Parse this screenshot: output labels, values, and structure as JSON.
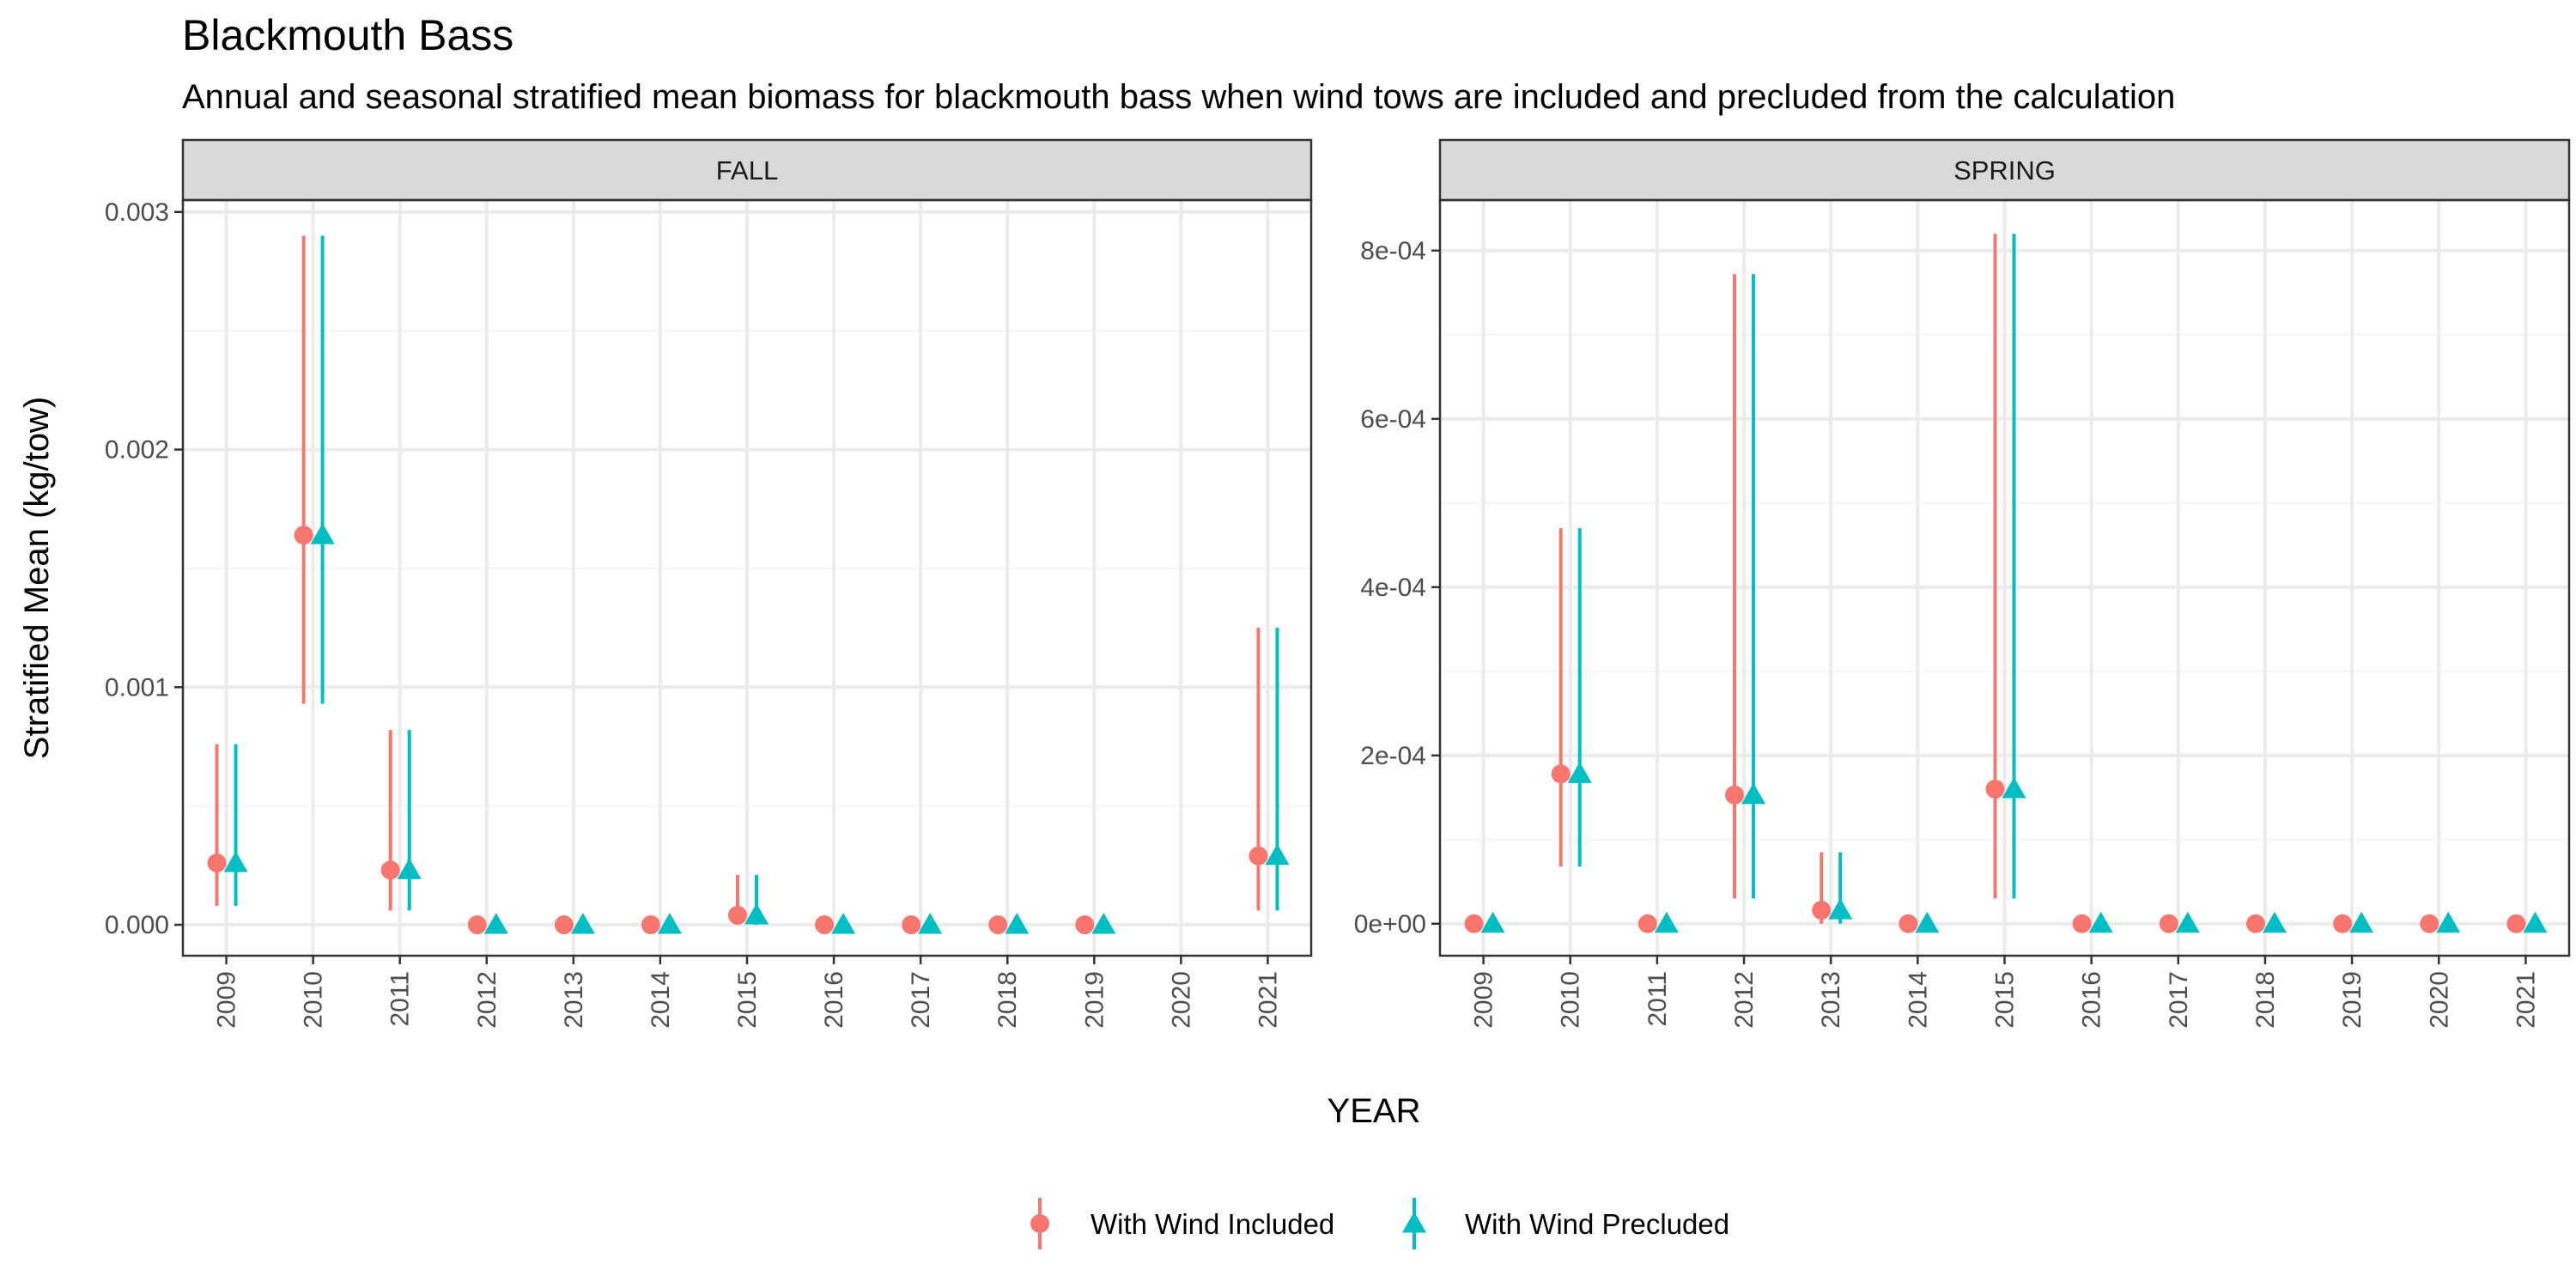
{
  "title": "Blackmouth Bass",
  "subtitle": "Annual and seasonal stratified mean biomass for blackmouth bass when wind tows are included and precluded from the calculation",
  "colors": {
    "with_wind_included": "#F8766D",
    "with_wind_precluded": "#00BFC4",
    "strip_bg": "#D9D9D9",
    "grid_major": "#EBEBEB",
    "grid_minor": "#F5F5F5",
    "panel_border": "#333333"
  },
  "chart_data": [
    {
      "type": "scatter",
      "panel": "FALL",
      "xlabel": "YEAR",
      "ylabel": "Stratified Mean (kg/tow)",
      "x": [
        "2009",
        "2010",
        "2011",
        "2012",
        "2013",
        "2014",
        "2015",
        "2016",
        "2017",
        "2018",
        "2019",
        "2020",
        "2021"
      ],
      "ylim": [
        -0.00013,
        0.00305
      ],
      "y_ticks": [
        0,
        0.001,
        0.002,
        0.003
      ],
      "y_tick_labels": [
        "0.000",
        "0.001",
        "0.002",
        "0.003"
      ],
      "grid": true,
      "series": [
        {
          "name": "With Wind Included",
          "marker": "circle",
          "values": [
            0.00026,
            0.00164,
            0.00023,
            0.0,
            0.0,
            0.0,
            4e-05,
            0.0,
            0.0,
            0.0,
            0.0,
            null,
            0.00029
          ],
          "lower": [
            8e-05,
            0.00093,
            6e-05,
            0.0,
            0.0,
            0.0,
            0.0,
            0.0,
            0.0,
            0.0,
            0.0,
            null,
            6e-05
          ],
          "upper": [
            0.00076,
            0.0029,
            0.00082,
            0.0,
            0.0,
            0.0,
            0.00021,
            0.0,
            0.0,
            0.0,
            0.0,
            null,
            0.00125
          ]
        },
        {
          "name": "With Wind Precluded",
          "marker": "triangle",
          "values": [
            0.00026,
            0.00164,
            0.00023,
            0.0,
            0.0,
            0.0,
            4e-05,
            0.0,
            0.0,
            0.0,
            0.0,
            null,
            0.00029
          ],
          "lower": [
            8e-05,
            0.00093,
            6e-05,
            0.0,
            0.0,
            0.0,
            0.0,
            0.0,
            0.0,
            0.0,
            0.0,
            null,
            6e-05
          ],
          "upper": [
            0.00076,
            0.0029,
            0.00082,
            0.0,
            0.0,
            0.0,
            0.00021,
            0.0,
            0.0,
            0.0,
            0.0,
            null,
            0.00125
          ]
        }
      ]
    },
    {
      "type": "scatter",
      "panel": "SPRING",
      "xlabel": "YEAR",
      "ylabel": "Stratified Mean (kg/tow)",
      "x": [
        "2009",
        "2010",
        "2011",
        "2012",
        "2013",
        "2014",
        "2015",
        "2016",
        "2017",
        "2018",
        "2019",
        "2020",
        "2021"
      ],
      "ylim": [
        -3.8e-05,
        0.00086
      ],
      "y_ticks": [
        0,
        0.0002,
        0.0004,
        0.0006,
        0.0008
      ],
      "y_tick_labels": [
        "0e+00",
        "2e-04",
        "4e-04",
        "6e-04",
        "8e-04"
      ],
      "grid": true,
      "series": [
        {
          "name": "With Wind Included",
          "marker": "circle",
          "values": [
            0.0,
            0.000178,
            0.0,
            0.000153,
            1.6e-05,
            0.0,
            0.00016,
            0.0,
            0.0,
            0.0,
            0.0,
            0.0,
            0.0
          ],
          "lower": [
            0.0,
            6.8e-05,
            0.0,
            3e-05,
            0.0,
            0.0,
            3e-05,
            0.0,
            0.0,
            0.0,
            0.0,
            0.0,
            0.0
          ],
          "upper": [
            0.0,
            0.00047,
            0.0,
            0.000772,
            8.5e-05,
            0.0,
            0.00082,
            0.0,
            0.0,
            0.0,
            0.0,
            0.0,
            0.0
          ]
        },
        {
          "name": "With Wind Precluded",
          "marker": "triangle",
          "values": [
            0.0,
            0.000178,
            0.0,
            0.000153,
            1.6e-05,
            0.0,
            0.00016,
            0.0,
            0.0,
            0.0,
            0.0,
            0.0,
            0.0
          ],
          "lower": [
            0.0,
            6.8e-05,
            0.0,
            3e-05,
            0.0,
            0.0,
            3e-05,
            0.0,
            0.0,
            0.0,
            0.0,
            0.0,
            0.0
          ],
          "upper": [
            0.0,
            0.00047,
            0.0,
            0.000772,
            8.5e-05,
            0.0,
            0.00082,
            0.0,
            0.0,
            0.0,
            0.0,
            0.0,
            0.0
          ]
        }
      ]
    }
  ],
  "axes": {
    "xlabel": "YEAR",
    "ylabel": "Stratified Mean (kg/tow)"
  },
  "legend": {
    "placement": "bottom",
    "items": [
      "With Wind Included",
      "With Wind Precluded"
    ]
  }
}
